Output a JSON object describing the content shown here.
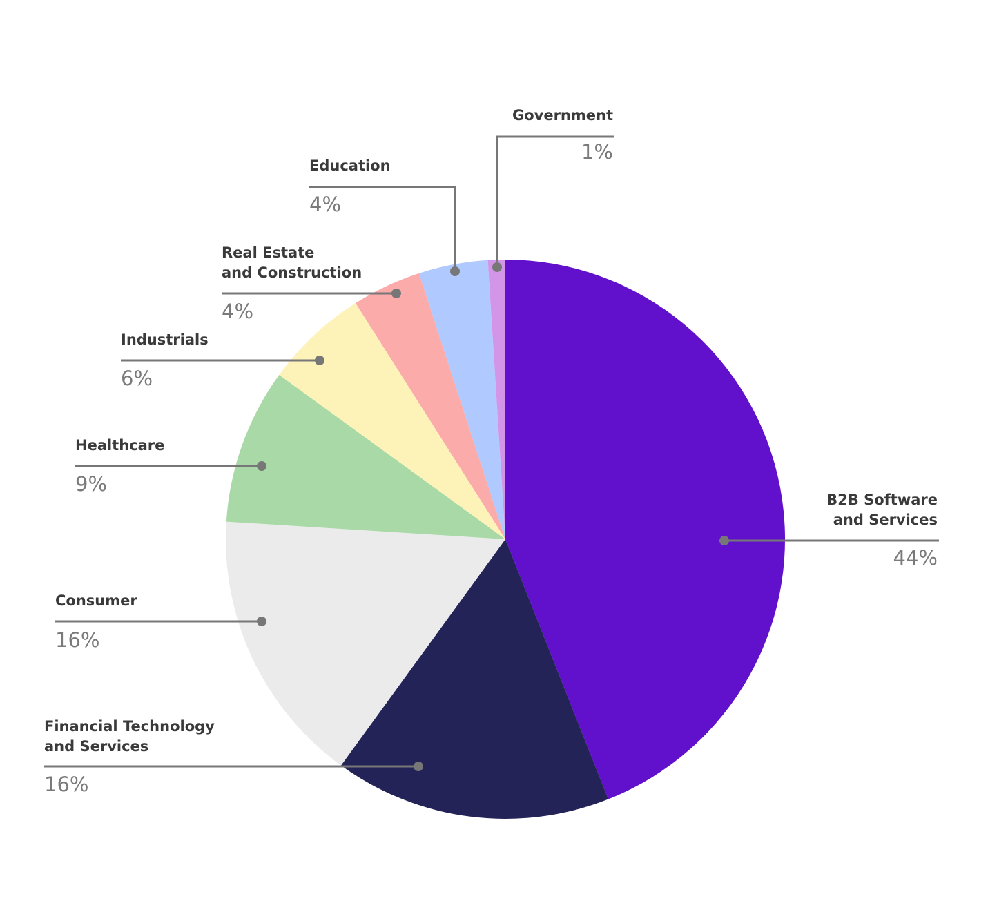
{
  "chart_data": {
    "type": "pie",
    "title": "",
    "start_angle_deg": 0,
    "direction": "clockwise",
    "slices": [
      {
        "label_lines": [
          "B2B Software",
          "and Services"
        ],
        "value": 44,
        "value_text": "44%",
        "color": "#6110cc"
      },
      {
        "label_lines": [
          "Financial Technology",
          "and Services"
        ],
        "value": 16,
        "value_text": "16%",
        "color": "#232357"
      },
      {
        "label_lines": [
          "Consumer"
        ],
        "value": 16,
        "value_text": "16%",
        "color": "#ebebeb"
      },
      {
        "label_lines": [
          "Healthcare"
        ],
        "value": 9,
        "value_text": "9%",
        "color": "#a8d9a6"
      },
      {
        "label_lines": [
          "Industrials"
        ],
        "value": 6,
        "value_text": "6%",
        "color": "#fdf2b8"
      },
      {
        "label_lines": [
          "Real Estate",
          "and Construction"
        ],
        "value": 4,
        "value_text": "4%",
        "color": "#fcabab"
      },
      {
        "label_lines": [
          "Education"
        ],
        "value": 4,
        "value_text": "4%",
        "color": "#b0c9fe"
      },
      {
        "label_lines": [
          "Government"
        ],
        "value": 1,
        "value_text": "1%",
        "color": "#d295e8"
      }
    ],
    "leader_color": "#777777",
    "label_color": "#3a3a3a",
    "value_color": "#7a7a7a"
  }
}
